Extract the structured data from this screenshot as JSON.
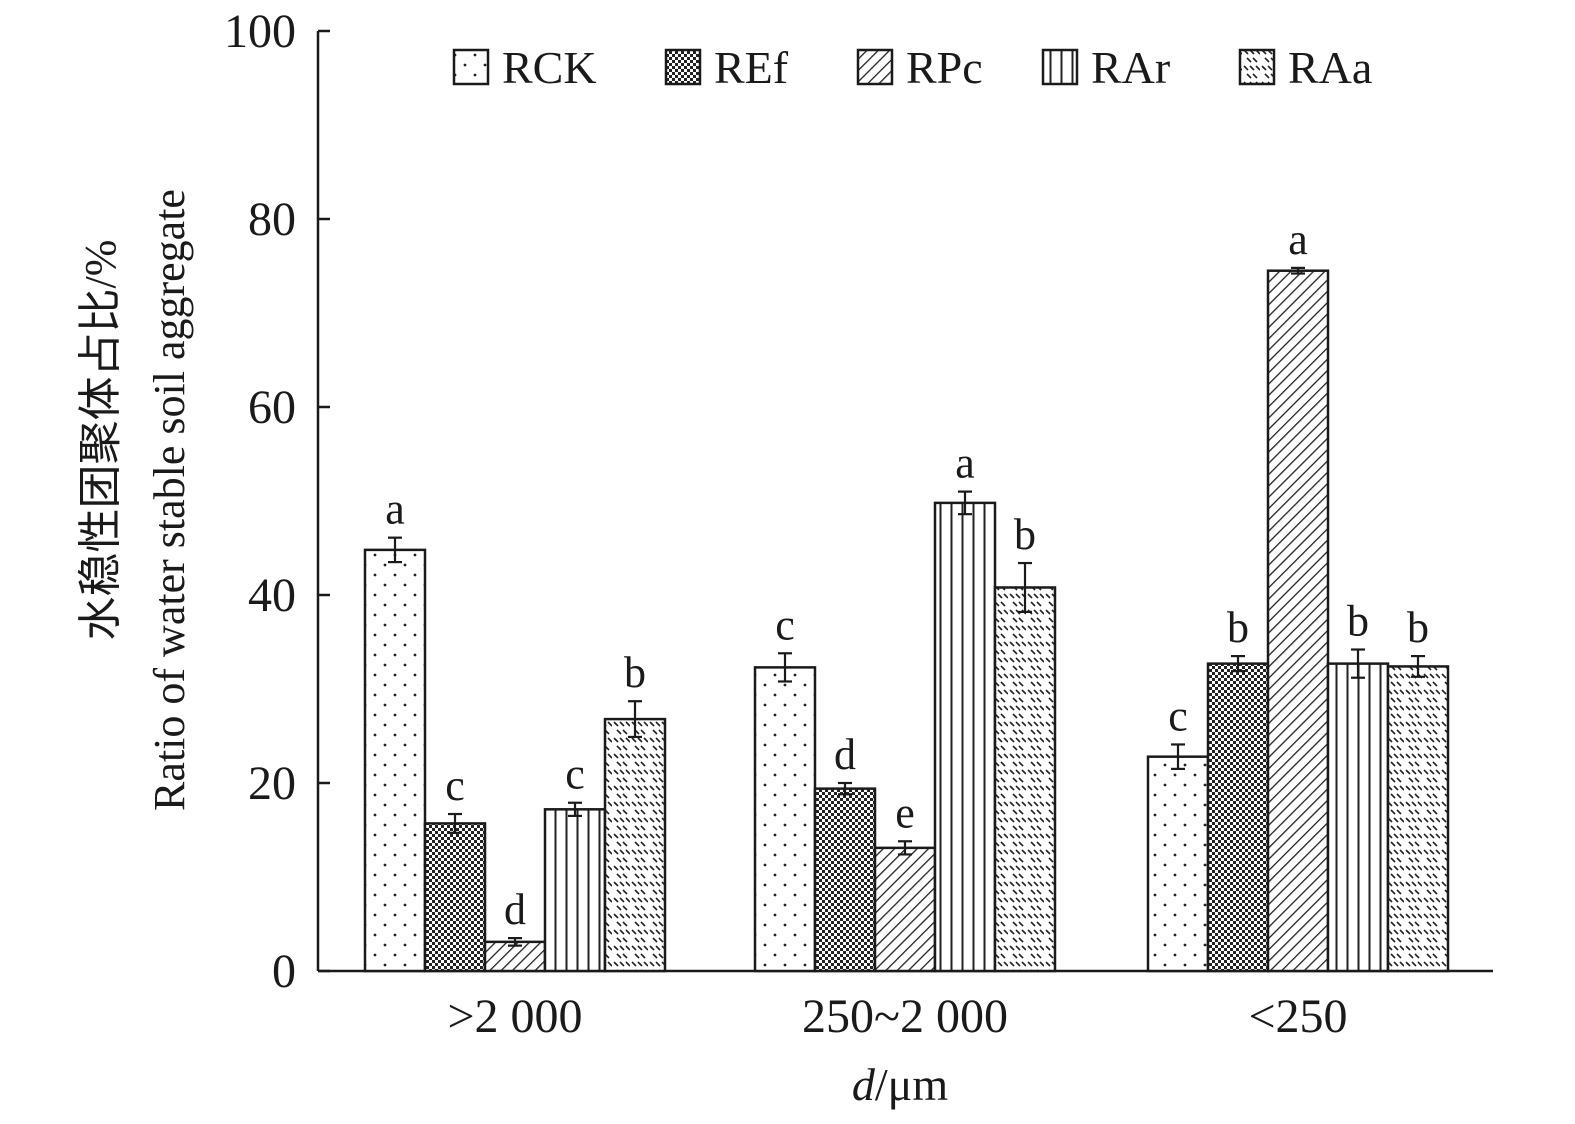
{
  "chart_data": {
    "type": "bar",
    "ylabel_cn": "水稳性团聚体占比/%",
    "ylabel_en": "Ratio of water stable soil aggregate",
    "xlabel_var": "d",
    "xlabel_unit": "/μm",
    "ylim": [
      0,
      100
    ],
    "yticks": [
      "0",
      "20",
      "40",
      "60",
      "80",
      "100"
    ],
    "categories": [
      ">2 000",
      "250~2 000",
      "<250"
    ],
    "legend_position": "top",
    "series": [
      {
        "name": "RCK",
        "pattern": "dots",
        "values": [
          44.8,
          32.3,
          22.8
        ],
        "errors": [
          1.3,
          1.5,
          1.3
        ],
        "letters": [
          "a",
          "c",
          "c"
        ]
      },
      {
        "name": "REf",
        "pattern": "checker",
        "values": [
          15.7,
          19.4,
          32.7
        ],
        "errors": [
          1.0,
          0.6,
          0.8
        ],
        "letters": [
          "c",
          "d",
          "b"
        ]
      },
      {
        "name": "RPc",
        "pattern": "diagonal",
        "values": [
          3.1,
          13.1,
          74.5
        ],
        "errors": [
          0.4,
          0.7,
          0.3
        ],
        "letters": [
          "d",
          "e",
          "a"
        ]
      },
      {
        "name": "RAr",
        "pattern": "vertical",
        "values": [
          17.2,
          49.8,
          32.7
        ],
        "errors": [
          0.7,
          1.2,
          1.5
        ],
        "letters": [
          "c",
          "a",
          "b"
        ]
      },
      {
        "name": "RAa",
        "pattern": "dashes",
        "values": [
          26.8,
          40.8,
          32.4
        ],
        "errors": [
          1.9,
          2.6,
          1.1
        ],
        "letters": [
          "b",
          "b",
          "b"
        ]
      }
    ]
  }
}
